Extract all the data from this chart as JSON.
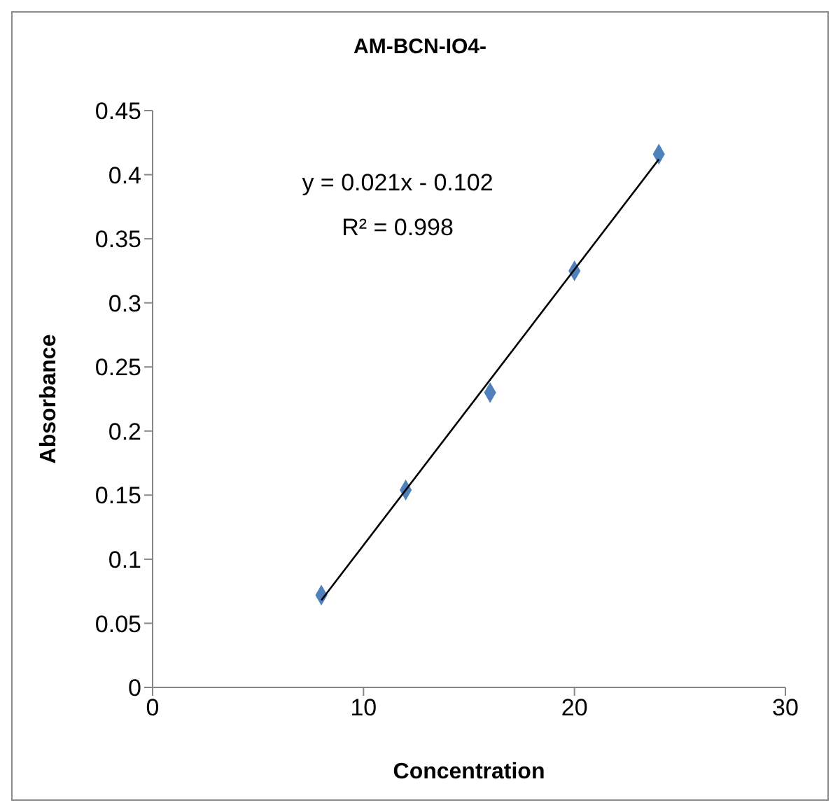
{
  "chart_data": {
    "type": "scatter",
    "title": "AM-BCN-IO4-",
    "xlabel": "Concentration",
    "ylabel": "Absorbance",
    "x": [
      8,
      12,
      16,
      20,
      24
    ],
    "series": [
      {
        "color": "#4f81bd",
        "values": [
          0.072,
          0.154,
          0.23,
          0.325,
          0.416
        ],
        "marker": "diamond"
      },
      {
        "type": "line",
        "color": "#000000",
        "x": [
          8,
          24
        ],
        "values": [
          0.068,
          0.412
        ],
        "marker": "none",
        "line_style": "solid"
      }
    ],
    "xlim": [
      0,
      30
    ],
    "xticks": [
      0,
      10,
      20,
      30
    ],
    "ylim": [
      0,
      0.45
    ],
    "yticks": [
      0,
      0.05,
      0.1,
      0.15,
      0.2,
      0.25,
      0.3,
      0.35,
      0.4,
      0.45
    ],
    "annotations": [
      "y = 0.021x - 0.102",
      "R² = 0.998"
    ],
    "grid": false
  }
}
